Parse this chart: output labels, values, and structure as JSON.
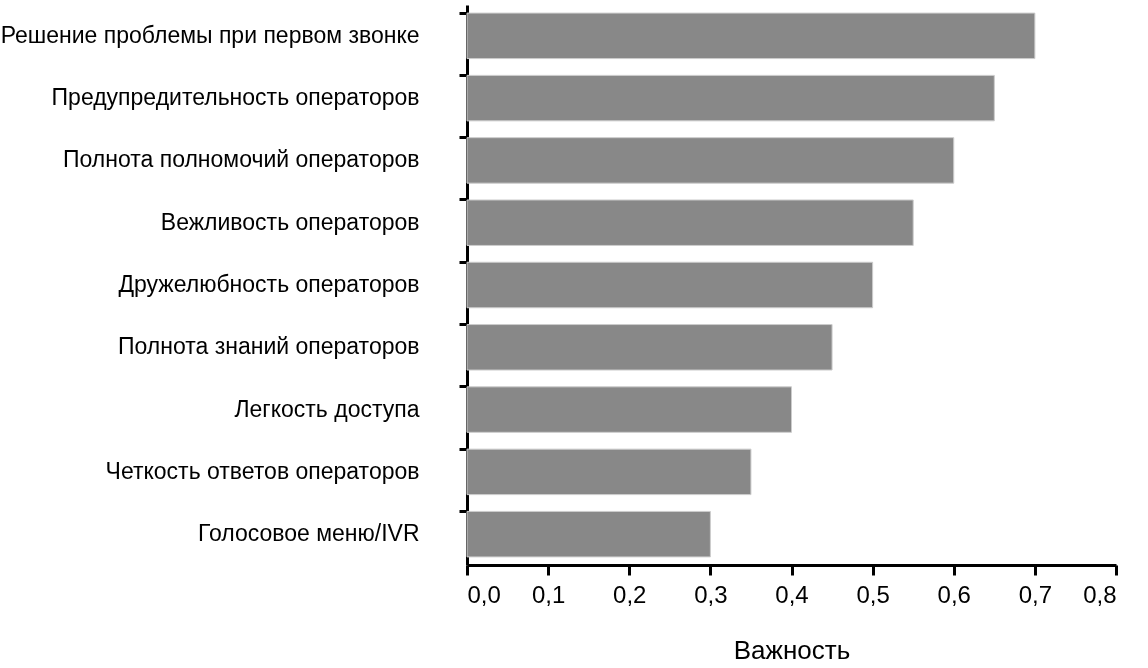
{
  "chart_data": {
    "type": "bar",
    "orientation": "horizontal",
    "xlabel": "Важность",
    "categories": [
      "Решение проблемы при первом звонке",
      "Предупредительность операторов",
      "Полнота полномочий операторов",
      "Вежливость операторов",
      "Дружелюбность операторов",
      "Полнота знаний операторов",
      "Легкость доступа",
      "Четкость ответов операторов",
      "Голосовое меню/IVR"
    ],
    "values": [
      0.7,
      0.65,
      0.6,
      0.55,
      0.5,
      0.45,
      0.4,
      0.35,
      0.3
    ],
    "color": "#888888",
    "xlim": [
      0,
      0.8
    ],
    "xticks": [
      {
        "value": 0,
        "label": "0,0"
      },
      {
        "value": 0.1,
        "label": "0,1"
      },
      {
        "value": 0.2,
        "label": "0,2"
      },
      {
        "value": 0.3,
        "label": "0,3"
      },
      {
        "value": 0.4,
        "label": "0,4"
      },
      {
        "value": 0.5,
        "label": "0,5"
      },
      {
        "value": 0.6,
        "label": "0,6"
      },
      {
        "value": 0.7,
        "label": "0,7"
      },
      {
        "value": 0.8,
        "label": "0,8"
      }
    ],
    "grid": false
  }
}
